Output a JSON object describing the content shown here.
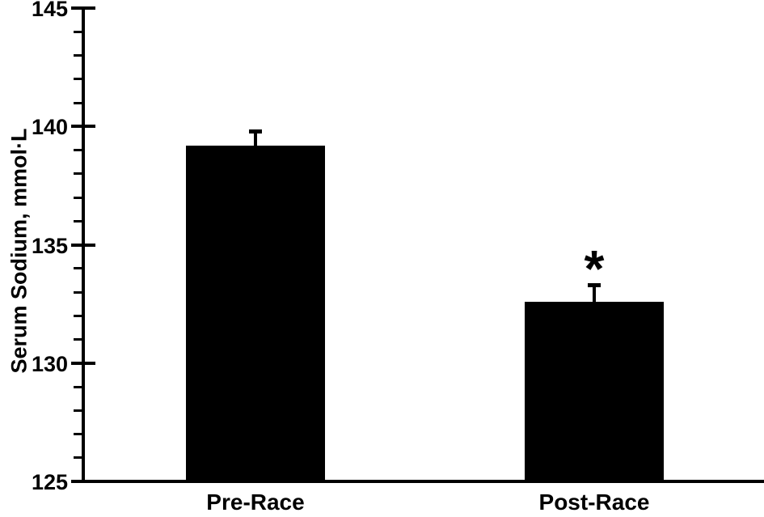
{
  "chart_data": {
    "type": "bar",
    "title": "",
    "xlabel": "",
    "ylabel": "Serum Sodium, mmol·L",
    "ylim": [
      125,
      145
    ],
    "yticks": [
      125,
      130,
      135,
      140,
      145
    ],
    "yticklabels": [
      "125",
      "130",
      "135",
      "140",
      "145"
    ],
    "minor_tick_interval": 1,
    "major_tick_interval": 5,
    "categories": [
      "Pre-Race",
      "Post-Race"
    ],
    "values": [
      139.2,
      132.6
    ],
    "errors": [
      0.6,
      0.7
    ],
    "error_direction": "up",
    "annotations": [
      {
        "category": "Post-Race",
        "text": "*",
        "position": "above-error-bar"
      }
    ],
    "bar_color": "#000000",
    "axis_color": "#000000",
    "text_color": "#000000",
    "background_color": "#ffffff",
    "grid": false,
    "legend": false
  }
}
